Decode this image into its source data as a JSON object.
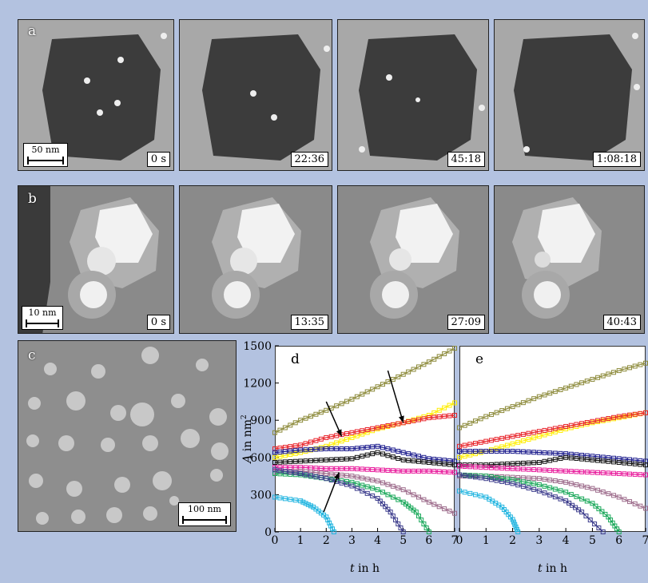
{
  "row_a": {
    "letter": "a",
    "scale": "50 nm",
    "times": [
      "0 s",
      "22:36",
      "45:18",
      "1:08:18"
    ]
  },
  "row_b": {
    "letter": "b",
    "scale": "10 nm",
    "times": [
      "0 s",
      "13:35",
      "27:09",
      "40:43"
    ]
  },
  "panel_c": {
    "letter": "c",
    "scale": "100 nm"
  },
  "chart_data": [
    {
      "type": "scatter",
      "panel": "d",
      "xlabel_italic": "t",
      "xlabel_rest": " in h",
      "ylabel_italic": "A",
      "ylabel_rest": " in nm",
      "ylabel_sup": "2",
      "xlim": [
        0,
        7
      ],
      "ylim": [
        0,
        1500
      ],
      "xticks": [
        0,
        1,
        2,
        3,
        4,
        5,
        6,
        7
      ],
      "yticks": [
        0,
        300,
        600,
        900,
        1200,
        1500
      ],
      "series": [
        {
          "color": "#8c8a3a",
          "points": [
            [
              0,
              800
            ],
            [
              1,
              900
            ],
            [
              2,
              980
            ],
            [
              3,
              1070
            ],
            [
              4,
              1170
            ],
            [
              5,
              1270
            ],
            [
              6,
              1370
            ],
            [
              7,
              1480
            ]
          ]
        },
        {
          "color": "#ffee00",
          "points": [
            [
              0,
              600
            ],
            [
              1,
              640
            ],
            [
              2,
              690
            ],
            [
              3,
              760
            ],
            [
              4,
              830
            ],
            [
              5,
              880
            ],
            [
              6,
              940
            ],
            [
              7,
              1040
            ]
          ]
        },
        {
          "color": "#e8232a",
          "points": [
            [
              0,
              670
            ],
            [
              1,
              700
            ],
            [
              2,
              760
            ],
            [
              3,
              800
            ],
            [
              4,
              840
            ],
            [
              5,
              880
            ],
            [
              6,
              920
            ],
            [
              7,
              940
            ]
          ]
        },
        {
          "color": "#1a1a8c",
          "points": [
            [
              0,
              640
            ],
            [
              1,
              660
            ],
            [
              2,
              670
            ],
            [
              3,
              670
            ],
            [
              4,
              690
            ],
            [
              5,
              640
            ],
            [
              6,
              590
            ],
            [
              7,
              570
            ]
          ]
        },
        {
          "color": "#111111",
          "points": [
            [
              0,
              560
            ],
            [
              1,
              570
            ],
            [
              2,
              580
            ],
            [
              3,
              590
            ],
            [
              4,
              640
            ],
            [
              5,
              580
            ],
            [
              6,
              560
            ],
            [
              7,
              540
            ]
          ]
        },
        {
          "color": "#e8179a",
          "points": [
            [
              0,
              520
            ],
            [
              1,
              520
            ],
            [
              2,
              510
            ],
            [
              3,
              510
            ],
            [
              4,
              500
            ],
            [
              5,
              490
            ],
            [
              6,
              490
            ],
            [
              7,
              480
            ]
          ]
        },
        {
          "color": "#9c6a8a",
          "points": [
            [
              0,
              480
            ],
            [
              1,
              490
            ],
            [
              2,
              470
            ],
            [
              3,
              450
            ],
            [
              4,
              410
            ],
            [
              5,
              340
            ],
            [
              6,
              240
            ],
            [
              7,
              150
            ]
          ]
        },
        {
          "color": "#1aa85a",
          "points": [
            [
              0,
              470
            ],
            [
              1,
              460
            ],
            [
              2,
              430
            ],
            [
              3,
              400
            ],
            [
              4,
              340
            ],
            [
              5,
              240
            ],
            [
              5.5,
              160
            ],
            [
              6,
              0
            ]
          ]
        },
        {
          "color": "#3c3c8c",
          "points": [
            [
              0,
              500
            ],
            [
              1,
              470
            ],
            [
              2,
              430
            ],
            [
              3,
              370
            ],
            [
              4,
              270
            ],
            [
              4.5,
              160
            ],
            [
              5,
              0
            ]
          ]
        },
        {
          "color": "#22b5e0",
          "points": [
            [
              0,
              280
            ],
            [
              1,
              250
            ],
            [
              1.5,
              200
            ],
            [
              2,
              120
            ],
            [
              2.3,
              0
            ]
          ]
        }
      ],
      "arrows": [
        [
          [
            2.0,
            1050
          ],
          [
            2.6,
            770
          ]
        ],
        [
          [
            4.4,
            1300
          ],
          [
            5.0,
            880
          ]
        ],
        [
          [
            1.9,
            160
          ],
          [
            2.5,
            480
          ]
        ]
      ]
    },
    {
      "type": "scatter",
      "panel": "e",
      "xlabel_italic": "t",
      "xlabel_rest": " in h",
      "xlim": [
        0,
        7
      ],
      "ylim": [
        0,
        1500
      ],
      "xticks": [
        0,
        1,
        2,
        3,
        4,
        5,
        6,
        7
      ],
      "series": [
        {
          "color": "#8c8a3a",
          "points": [
            [
              0,
              840
            ],
            [
              1,
              930
            ],
            [
              2,
              1010
            ],
            [
              3,
              1090
            ],
            [
              4,
              1160
            ],
            [
              5,
              1230
            ],
            [
              6,
              1300
            ],
            [
              7,
              1360
            ]
          ]
        },
        {
          "color": "#ffee00",
          "points": [
            [
              0,
              600
            ],
            [
              1,
              650
            ],
            [
              2,
              710
            ],
            [
              3,
              770
            ],
            [
              4,
              830
            ],
            [
              5,
              880
            ],
            [
              6,
              920
            ],
            [
              7,
              960
            ]
          ]
        },
        {
          "color": "#e8232a",
          "points": [
            [
              0,
              690
            ],
            [
              1,
              730
            ],
            [
              2,
              770
            ],
            [
              3,
              810
            ],
            [
              4,
              850
            ],
            [
              5,
              890
            ],
            [
              6,
              930
            ],
            [
              7,
              960
            ]
          ]
        },
        {
          "color": "#1a1a8c",
          "points": [
            [
              0,
              650
            ],
            [
              1,
              650
            ],
            [
              2,
              650
            ],
            [
              3,
              640
            ],
            [
              4,
              630
            ],
            [
              5,
              610
            ],
            [
              6,
              590
            ],
            [
              7,
              570
            ]
          ]
        },
        {
          "color": "#111111",
          "points": [
            [
              0,
              540
            ],
            [
              1,
              540
            ],
            [
              2,
              550
            ],
            [
              3,
              560
            ],
            [
              4,
              600
            ],
            [
              5,
              580
            ],
            [
              6,
              560
            ],
            [
              7,
              540
            ]
          ]
        },
        {
          "color": "#e8179a",
          "points": [
            [
              0,
              530
            ],
            [
              1,
              520
            ],
            [
              2,
              510
            ],
            [
              3,
              500
            ],
            [
              4,
              490
            ],
            [
              5,
              480
            ],
            [
              6,
              470
            ],
            [
              7,
              460
            ]
          ]
        },
        {
          "color": "#9c6a8a",
          "points": [
            [
              0,
              450
            ],
            [
              1,
              450
            ],
            [
              2,
              440
            ],
            [
              3,
              430
            ],
            [
              4,
              400
            ],
            [
              5,
              350
            ],
            [
              6,
              280
            ],
            [
              7,
              190
            ]
          ]
        },
        {
          "color": "#1aa85a",
          "points": [
            [
              0,
              460
            ],
            [
              1,
              450
            ],
            [
              2,
              420
            ],
            [
              3,
              380
            ],
            [
              4,
              320
            ],
            [
              5,
              230
            ],
            [
              5.6,
              120
            ],
            [
              6,
              0
            ]
          ]
        },
        {
          "color": "#3c3c8c",
          "points": [
            [
              0,
              460
            ],
            [
              1,
              430
            ],
            [
              2,
              390
            ],
            [
              3,
              330
            ],
            [
              4,
              250
            ],
            [
              4.6,
              160
            ],
            [
              5.4,
              0
            ]
          ]
        },
        {
          "color": "#22b5e0",
          "points": [
            [
              0,
              330
            ],
            [
              1,
              280
            ],
            [
              1.6,
              200
            ],
            [
              2,
              100
            ],
            [
              2.2,
              0
            ]
          ]
        }
      ]
    }
  ]
}
